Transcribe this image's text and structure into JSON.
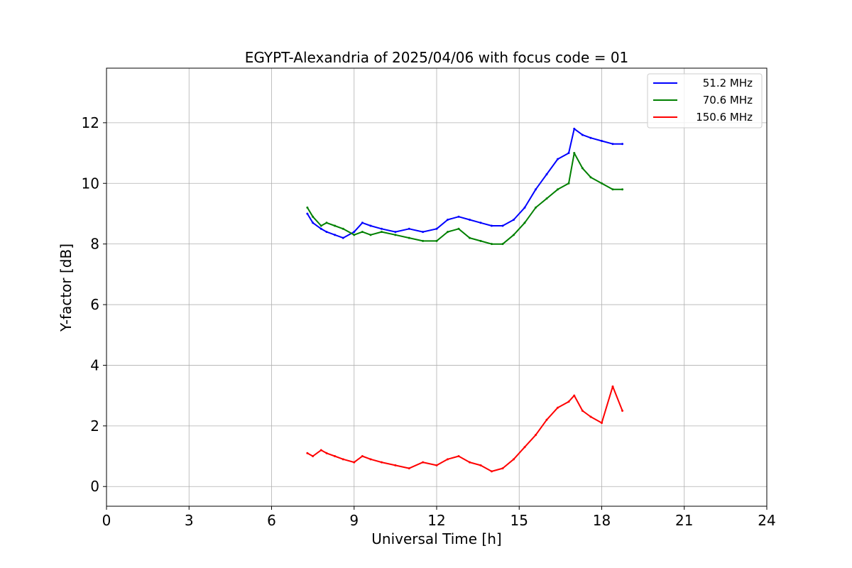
{
  "chart_data": {
    "type": "line",
    "title": "EGYPT-Alexandria of 2025/04/06 with focus code = 01",
    "xlabel": "Universal Time [h]",
    "ylabel": "Y-factor [dB]",
    "xlim": [
      0,
      24
    ],
    "ylim": [
      -0.65,
      13.8
    ],
    "xticks": [
      0,
      3,
      6,
      9,
      12,
      15,
      18,
      21,
      24
    ],
    "yticks": [
      0,
      2,
      4,
      6,
      8,
      10,
      12
    ],
    "grid": true,
    "legend_position": "top-right",
    "series": [
      {
        "name": "51.2 MHz",
        "color": "#0000ff",
        "x": [
          7.3,
          7.5,
          7.8,
          8.0,
          8.3,
          8.6,
          9.0,
          9.3,
          9.6,
          10.0,
          10.5,
          11.0,
          11.5,
          12.0,
          12.4,
          12.8,
          13.2,
          13.6,
          14.0,
          14.4,
          14.8,
          15.2,
          15.6,
          16.0,
          16.4,
          16.8,
          17.0,
          17.3,
          17.6,
          18.0,
          18.4,
          18.75
        ],
        "y": [
          9.0,
          8.7,
          8.5,
          8.4,
          8.3,
          8.2,
          8.4,
          8.7,
          8.6,
          8.5,
          8.4,
          8.5,
          8.4,
          8.5,
          8.8,
          8.9,
          8.8,
          8.7,
          8.6,
          8.6,
          8.8,
          9.2,
          9.8,
          10.3,
          10.8,
          11.0,
          11.8,
          11.6,
          11.5,
          11.4,
          11.3,
          11.3
        ]
      },
      {
        "name": "70.6 MHz",
        "color": "#008000",
        "x": [
          7.3,
          7.5,
          7.8,
          8.0,
          8.3,
          8.6,
          9.0,
          9.3,
          9.6,
          10.0,
          10.5,
          11.0,
          11.5,
          12.0,
          12.4,
          12.8,
          13.2,
          13.6,
          14.0,
          14.4,
          14.8,
          15.2,
          15.6,
          16.0,
          16.4,
          16.8,
          17.0,
          17.3,
          17.6,
          18.0,
          18.4,
          18.75
        ],
        "y": [
          9.2,
          8.9,
          8.6,
          8.7,
          8.6,
          8.5,
          8.3,
          8.4,
          8.3,
          8.4,
          8.3,
          8.2,
          8.1,
          8.1,
          8.4,
          8.5,
          8.2,
          8.1,
          8.0,
          8.0,
          8.3,
          8.7,
          9.2,
          9.5,
          9.8,
          10.0,
          11.0,
          10.5,
          10.2,
          10.0,
          9.8,
          9.8
        ]
      },
      {
        "name": "150.6 MHz",
        "color": "#ff0000",
        "x": [
          7.3,
          7.5,
          7.8,
          8.0,
          8.3,
          8.6,
          9.0,
          9.3,
          9.6,
          10.0,
          10.5,
          11.0,
          11.5,
          12.0,
          12.4,
          12.8,
          13.2,
          13.6,
          14.0,
          14.4,
          14.8,
          15.2,
          15.6,
          16.0,
          16.4,
          16.8,
          17.0,
          17.3,
          17.6,
          18.0,
          18.4,
          18.75
        ],
        "y": [
          1.1,
          1.0,
          1.2,
          1.1,
          1.0,
          0.9,
          0.8,
          1.0,
          0.9,
          0.8,
          0.7,
          0.6,
          0.8,
          0.7,
          0.9,
          1.0,
          0.8,
          0.7,
          0.5,
          0.6,
          0.9,
          1.3,
          1.7,
          2.2,
          2.6,
          2.8,
          3.0,
          2.5,
          2.3,
          2.1,
          3.3,
          2.5
        ]
      }
    ]
  }
}
